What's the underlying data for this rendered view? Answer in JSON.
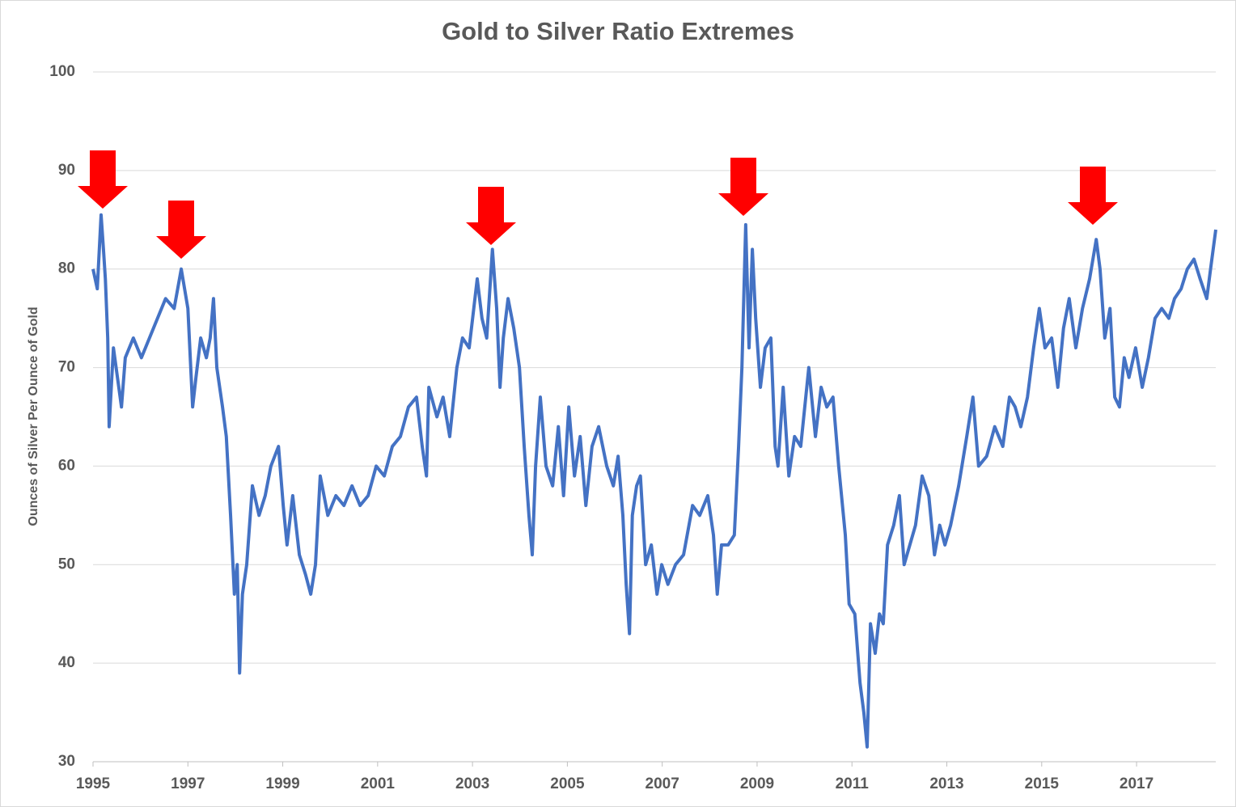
{
  "chart_data": {
    "type": "line",
    "title": "Gold to Silver Ratio Extremes",
    "y_label": "Ounces of Silver Per Ounce of Gold",
    "xlim": [
      1995,
      2018.67
    ],
    "xticks": [
      1995,
      1997,
      1999,
      2001,
      2003,
      2005,
      2007,
      2009,
      2011,
      2013,
      2015,
      2017
    ],
    "ylim": [
      30,
      100
    ],
    "yticks": [
      30,
      40,
      50,
      60,
      70,
      80,
      90,
      100
    ],
    "grid": true,
    "series": [
      {
        "color": "#4472c4",
        "x": [
          1995.0,
          1995.09,
          1995.17,
          1995.22,
          1995.26,
          1995.31,
          1995.34,
          1995.43,
          1995.6,
          1995.68,
          1995.85,
          1996.02,
          1996.19,
          1996.36,
          1996.53,
          1996.71,
          1996.86,
          1997.0,
          1997.1,
          1997.17,
          1997.27,
          1997.39,
          1997.47,
          1997.54,
          1997.61,
          1997.73,
          1997.81,
          1997.9,
          1997.98,
          1998.04,
          1998.09,
          1998.15,
          1998.24,
          1998.36,
          1998.5,
          1998.63,
          1998.75,
          1998.91,
          1999.01,
          1999.09,
          1999.21,
          1999.35,
          1999.48,
          1999.59,
          1999.69,
          1999.79,
          1999.95,
          2000.12,
          2000.29,
          2000.46,
          2000.63,
          2000.8,
          2000.97,
          2001.14,
          2001.31,
          2001.48,
          2001.65,
          2001.82,
          2001.94,
          2002.03,
          2002.08,
          2002.25,
          2002.38,
          2002.52,
          2002.67,
          2002.79,
          2002.93,
          2003.1,
          2003.2,
          2003.3,
          2003.42,
          2003.51,
          2003.58,
          2003.65,
          2003.75,
          2003.87,
          2003.99,
          2004.09,
          2004.19,
          2004.26,
          2004.33,
          2004.43,
          2004.55,
          2004.69,
          2004.81,
          2004.92,
          2005.03,
          2005.15,
          2005.27,
          2005.39,
          2005.52,
          2005.66,
          2005.83,
          2005.97,
          2006.07,
          2006.17,
          2006.24,
          2006.31,
          2006.37,
          2006.46,
          2006.54,
          2006.65,
          2006.77,
          2006.89,
          2006.99,
          2007.12,
          2007.28,
          2007.45,
          2007.64,
          2007.79,
          2007.96,
          2008.08,
          2008.16,
          2008.25,
          2008.39,
          2008.52,
          2008.61,
          2008.68,
          2008.76,
          2008.83,
          2008.9,
          2008.97,
          2009.07,
          2009.17,
          2009.29,
          2009.38,
          2009.44,
          2009.55,
          2009.67,
          2009.79,
          2009.92,
          2010.09,
          2010.23,
          2010.35,
          2010.47,
          2010.6,
          2010.72,
          2010.86,
          2010.94,
          2011.06,
          2011.17,
          2011.25,
          2011.32,
          2011.39,
          2011.49,
          2011.58,
          2011.66,
          2011.75,
          2011.88,
          2012.0,
          2012.1,
          2012.22,
          2012.34,
          2012.48,
          2012.62,
          2012.74,
          2012.85,
          2012.96,
          2013.08,
          2013.25,
          2013.42,
          2013.55,
          2013.67,
          2013.84,
          2014.01,
          2014.18,
          2014.32,
          2014.44,
          2014.56,
          2014.7,
          2014.83,
          2014.95,
          2015.07,
          2015.21,
          2015.34,
          2015.46,
          2015.58,
          2015.72,
          2015.86,
          2016.01,
          2016.15,
          2016.23,
          2016.33,
          2016.44,
          2016.54,
          2016.64,
          2016.74,
          2016.84,
          2016.98,
          2017.12,
          2017.25,
          2017.39,
          2017.53,
          2017.68,
          2017.8,
          2017.94,
          2018.07,
          2018.21,
          2018.34,
          2018.48,
          2018.56,
          2018.67
        ],
        "values": [
          80,
          78,
          85.5,
          82,
          79,
          73,
          64,
          72,
          66,
          71,
          73,
          71,
          73,
          75,
          77,
          76,
          80,
          76,
          66,
          69,
          73,
          71,
          73,
          77,
          70,
          66,
          63,
          55,
          47,
          50,
          39,
          47,
          50,
          58,
          55,
          57,
          60,
          62,
          56,
          52,
          57,
          51,
          49,
          47,
          50,
          59,
          55,
          57,
          56,
          58,
          56,
          57,
          60,
          59,
          62,
          63,
          66,
          67,
          62,
          59,
          68,
          65,
          67,
          63,
          70,
          73,
          72,
          79,
          75,
          73,
          82,
          76,
          68,
          73,
          77,
          74,
          70,
          62,
          55,
          51,
          60,
          67,
          60,
          58,
          64,
          57,
          66,
          59,
          63,
          56,
          62,
          64,
          60,
          58,
          61,
          55,
          48,
          43,
          55,
          58,
          59,
          50,
          52,
          47,
          50,
          48,
          50,
          51,
          56,
          55,
          57,
          53,
          47,
          52,
          52,
          53,
          62,
          70,
          84.5,
          72,
          82,
          75,
          68,
          72,
          73,
          62,
          60,
          68,
          59,
          63,
          62,
          70,
          63,
          68,
          66,
          67,
          60,
          53,
          46,
          45,
          38,
          35,
          31.5,
          44,
          41,
          45,
          44,
          52,
          54,
          57,
          50,
          52,
          54,
          59,
          57,
          51,
          54,
          52,
          54,
          58,
          63,
          67,
          60,
          61,
          64,
          62,
          67,
          66,
          64,
          67,
          72,
          76,
          72,
          73,
          68,
          74,
          77,
          72,
          76,
          79,
          83,
          80,
          73,
          76,
          67,
          66,
          71,
          69,
          72,
          68,
          71,
          75,
          76,
          75,
          77,
          78,
          80,
          81,
          79,
          77,
          80,
          84
        ]
      }
    ]
  }
}
